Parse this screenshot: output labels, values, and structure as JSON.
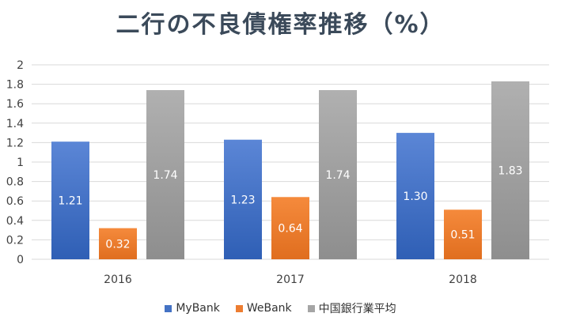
{
  "title": "二行の不良債権率推移（%）",
  "chart_data": {
    "type": "bar",
    "title": "二行の不良債権率推移（%）",
    "categories": [
      "2016",
      "2017",
      "2018"
    ],
    "series": [
      {
        "name": "MyBank",
        "values": [
          1.21,
          1.23,
          1.3
        ],
        "labels": [
          "1.21",
          "1.23",
          "1.30"
        ],
        "color": "#4a72c8"
      },
      {
        "name": "WeBank",
        "values": [
          0.32,
          0.64,
          0.51
        ],
        "labels": [
          "0.32",
          "0.64",
          "0.51"
        ],
        "color": "#ee7d31"
      },
      {
        "name": "中国銀行業平均",
        "values": [
          1.74,
          1.74,
          1.83
        ],
        "labels": [
          "1.74",
          "1.74",
          "1.83"
        ],
        "color": "#a5a5a5"
      }
    ],
    "ylim": [
      0,
      2
    ],
    "yticks": [
      "0",
      "0.2",
      "0.4",
      "0.6",
      "0.8",
      "1",
      "1.2",
      "1.4",
      "1.6",
      "1.8",
      "2"
    ],
    "grid": true,
    "legend_position": "bottom"
  }
}
